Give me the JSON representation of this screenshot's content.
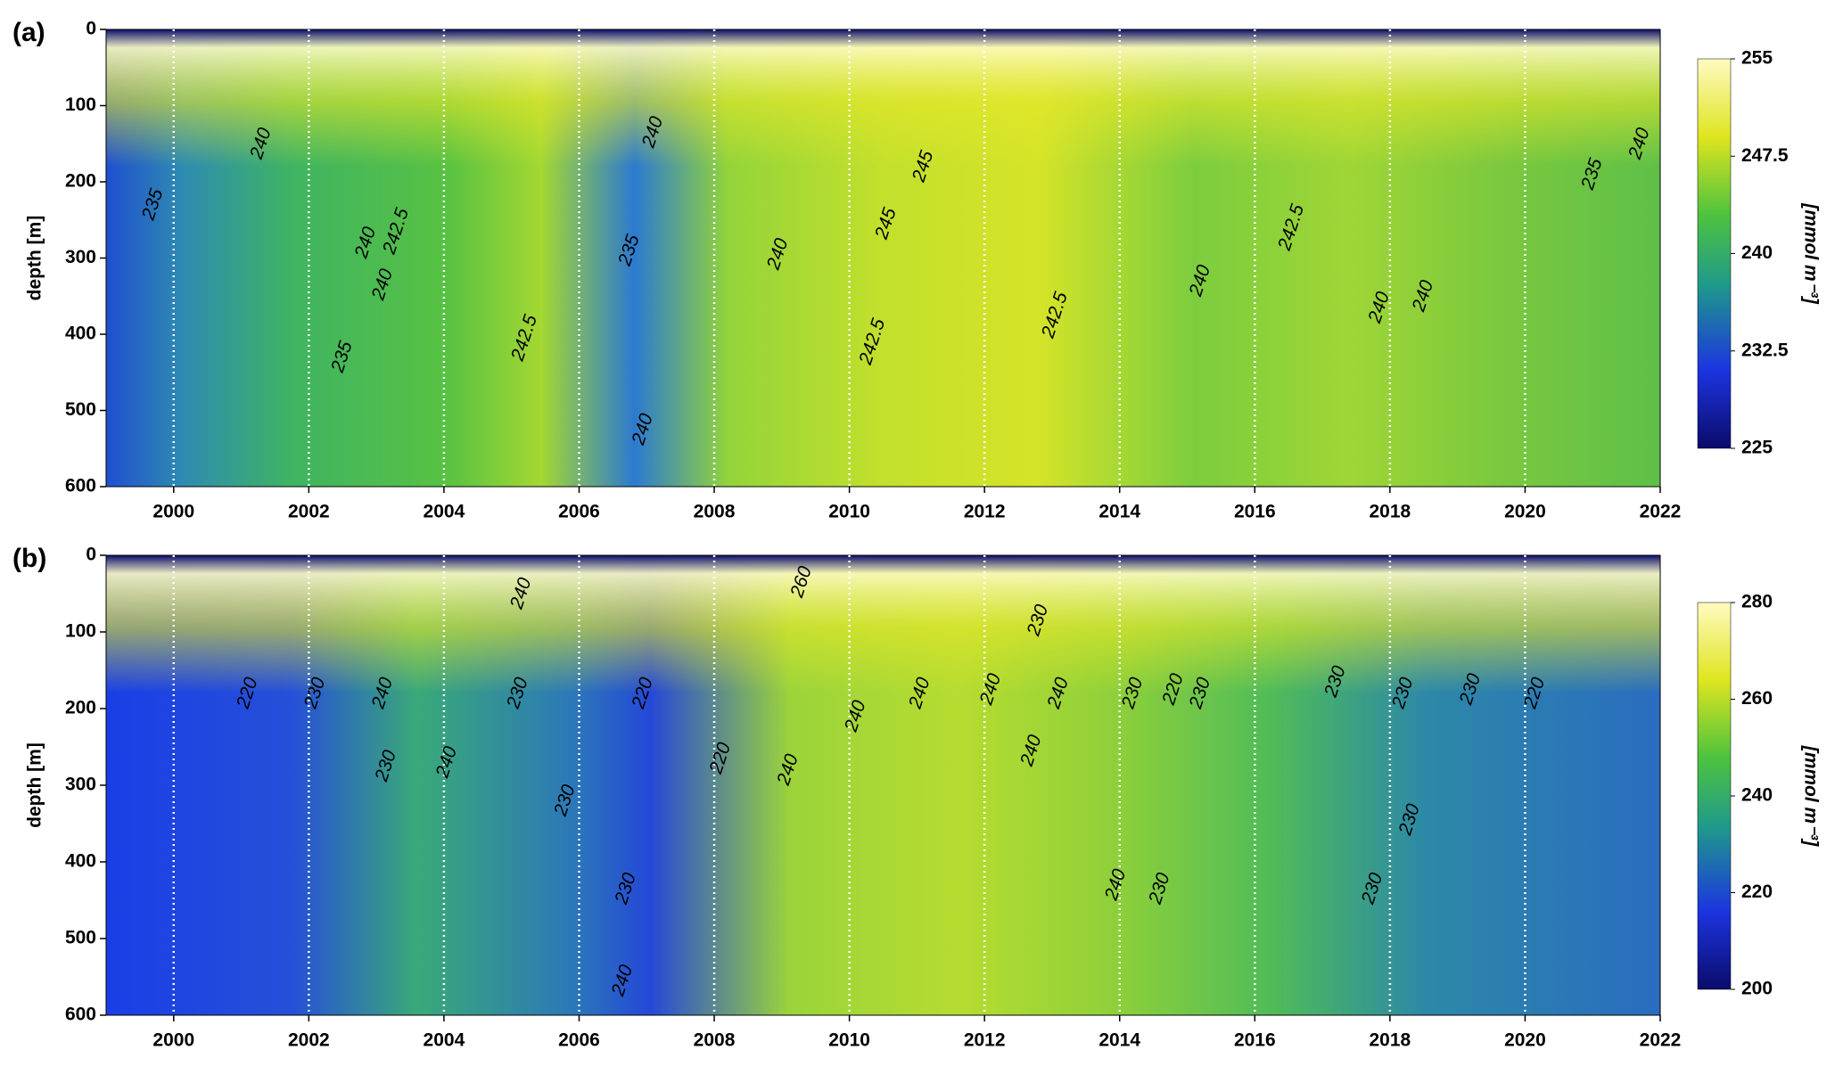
{
  "chart_data": [
    {
      "type": "heatmap",
      "panel_label": "(a)",
      "ylabel": "depth [m]",
      "xlim": [
        1999,
        2022
      ],
      "xticks": [
        2000,
        2002,
        2004,
        2006,
        2008,
        2010,
        2012,
        2014,
        2016,
        2018,
        2020,
        2022
      ],
      "ylim": [
        600,
        0
      ],
      "yticks": [
        0,
        100,
        200,
        300,
        400,
        500,
        600
      ],
      "grid": true,
      "colorbar": {
        "label": "[mmol m⁻³]",
        "lim": [
          225,
          255
        ],
        "ticks": [
          225,
          232.5,
          240,
          247.5,
          255
        ]
      },
      "contour_labels": [
        {
          "text": "235",
          "x": 1999.7,
          "y": 230
        },
        {
          "text": "240",
          "x": 2001.3,
          "y": 150
        },
        {
          "text": "240",
          "x": 2002.85,
          "y": 280
        },
        {
          "text": "242.5",
          "x": 2003.3,
          "y": 265
        },
        {
          "text": "240",
          "x": 2003.1,
          "y": 335
        },
        {
          "text": "235",
          "x": 2002.5,
          "y": 430
        },
        {
          "text": "242.5",
          "x": 2005.2,
          "y": 405
        },
        {
          "text": "235",
          "x": 2006.75,
          "y": 290
        },
        {
          "text": "240",
          "x": 2007.1,
          "y": 135
        },
        {
          "text": "240",
          "x": 2006.95,
          "y": 525
        },
        {
          "text": "240",
          "x": 2008.95,
          "y": 295
        },
        {
          "text": "245",
          "x": 2010.55,
          "y": 255
        },
        {
          "text": "245",
          "x": 2011.1,
          "y": 180
        },
        {
          "text": "242.5",
          "x": 2010.35,
          "y": 410
        },
        {
          "text": "242.5",
          "x": 2013.05,
          "y": 375
        },
        {
          "text": "240",
          "x": 2015.2,
          "y": 330
        },
        {
          "text": "242.5",
          "x": 2016.55,
          "y": 260
        },
        {
          "text": "240",
          "x": 2017.85,
          "y": 365
        },
        {
          "text": "240",
          "x": 2018.5,
          "y": 350
        },
        {
          "text": "235",
          "x": 2021.0,
          "y": 190
        },
        {
          "text": "240",
          "x": 2021.7,
          "y": 150
        }
      ]
    },
    {
      "type": "heatmap",
      "panel_label": "(b)",
      "ylabel": "depth [m]",
      "xlim": [
        1999,
        2022
      ],
      "xticks": [
        2000,
        2002,
        2004,
        2006,
        2008,
        2010,
        2012,
        2014,
        2016,
        2018,
        2020,
        2022
      ],
      "ylim": [
        600,
        0
      ],
      "yticks": [
        0,
        100,
        200,
        300,
        400,
        500,
        600
      ],
      "grid": true,
      "colorbar": {
        "label": "[mmol m⁻³]",
        "lim": [
          200,
          280
        ],
        "ticks": [
          200,
          220,
          240,
          260,
          280
        ]
      },
      "contour_labels": [
        {
          "text": "220",
          "x": 2001.1,
          "y": 180
        },
        {
          "text": "230",
          "x": 2002.1,
          "y": 180
        },
        {
          "text": "240",
          "x": 2003.1,
          "y": 180
        },
        {
          "text": "230",
          "x": 2003.15,
          "y": 275
        },
        {
          "text": "240",
          "x": 2004.05,
          "y": 270
        },
        {
          "text": "240",
          "x": 2005.15,
          "y": 50
        },
        {
          "text": "230",
          "x": 2005.1,
          "y": 180
        },
        {
          "text": "230",
          "x": 2005.8,
          "y": 320
        },
        {
          "text": "220",
          "x": 2006.95,
          "y": 180
        },
        {
          "text": "230",
          "x": 2006.7,
          "y": 435
        },
        {
          "text": "240",
          "x": 2006.65,
          "y": 555
        },
        {
          "text": "220",
          "x": 2008.1,
          "y": 265
        },
        {
          "text": "260",
          "x": 2009.3,
          "y": 35
        },
        {
          "text": "240",
          "x": 2009.1,
          "y": 280
        },
        {
          "text": "240",
          "x": 2010.1,
          "y": 210
        },
        {
          "text": "240",
          "x": 2011.05,
          "y": 180
        },
        {
          "text": "240",
          "x": 2012.1,
          "y": 175
        },
        {
          "text": "230",
          "x": 2012.8,
          "y": 85
        },
        {
          "text": "240",
          "x": 2013.1,
          "y": 180
        },
        {
          "text": "240",
          "x": 2012.7,
          "y": 255
        },
        {
          "text": "230",
          "x": 2014.2,
          "y": 180
        },
        {
          "text": "220",
          "x": 2014.8,
          "y": 175
        },
        {
          "text": "230",
          "x": 2015.2,
          "y": 180
        },
        {
          "text": "240",
          "x": 2013.95,
          "y": 430
        },
        {
          "text": "230",
          "x": 2014.6,
          "y": 435
        },
        {
          "text": "230",
          "x": 2017.2,
          "y": 165
        },
        {
          "text": "230",
          "x": 2018.2,
          "y": 180
        },
        {
          "text": "230",
          "x": 2018.3,
          "y": 345
        },
        {
          "text": "230",
          "x": 2017.75,
          "y": 435
        },
        {
          "text": "230",
          "x": 2019.2,
          "y": 175
        },
        {
          "text": "220",
          "x": 2020.15,
          "y": 180
        }
      ]
    }
  ]
}
